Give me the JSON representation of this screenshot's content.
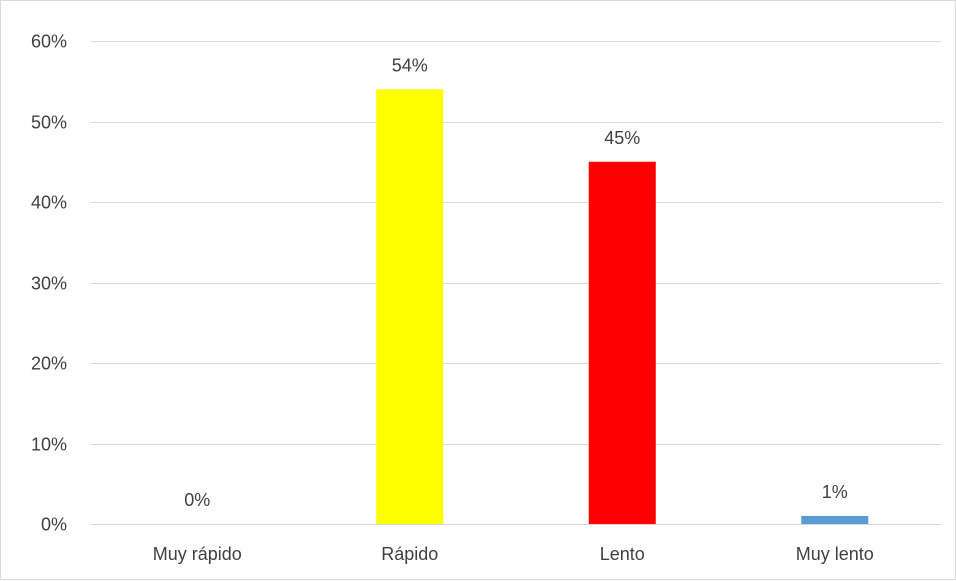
{
  "chart_data": {
    "type": "bar",
    "title": "",
    "xlabel": "",
    "ylabel": "",
    "categories": [
      "Muy rápido",
      "Rápido",
      "Lento",
      "Muy lento"
    ],
    "values": [
      0,
      54,
      45,
      1
    ],
    "data_labels": [
      "0%",
      "54%",
      "45%",
      "1%"
    ],
    "bar_colors": [
      "#4472c4",
      "#ffff00",
      "#ff0000",
      "#5b9bd5"
    ],
    "ylim": [
      0,
      60
    ],
    "y_ticks": [
      0,
      10,
      20,
      30,
      40,
      50,
      60
    ],
    "y_tick_labels": [
      "0%",
      "10%",
      "20%",
      "30%",
      "40%",
      "50%",
      "60%"
    ],
    "grid": true,
    "legend": "none"
  }
}
